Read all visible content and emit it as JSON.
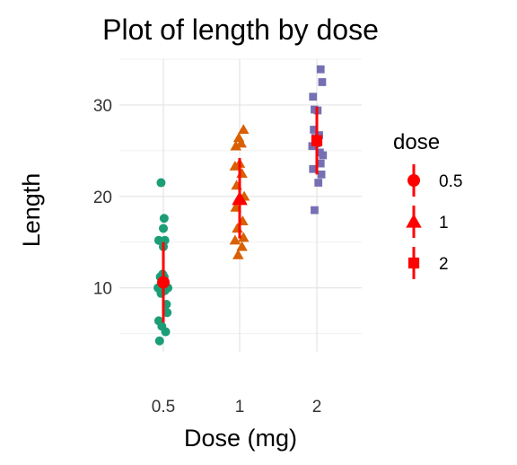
{
  "chart_data": {
    "type": "scatter",
    "title": "Plot of length  by dose",
    "xlabel": "Dose (mg)",
    "ylabel": "Length",
    "categories": [
      "0.5",
      "1",
      "2"
    ],
    "yticks": [
      10,
      20,
      30
    ],
    "ylim": [
      3,
      35
    ],
    "grid": true,
    "legend": {
      "title": "dose",
      "position": "right",
      "entries": [
        "0.5",
        "1",
        "2"
      ]
    },
    "series": [
      {
        "category": "0.5",
        "shape": "circle",
        "color": "#1b9e77",
        "points": [
          [
            -0.05,
            4.2
          ],
          [
            0.03,
            5.2
          ],
          [
            -0.02,
            5.8
          ],
          [
            -0.06,
            6.4
          ],
          [
            0.05,
            7.3
          ],
          [
            0.04,
            8.2
          ],
          [
            -0.03,
            9.4
          ],
          [
            0.02,
            9.7
          ],
          [
            -0.07,
            10.0
          ],
          [
            0.06,
            10.0
          ],
          [
            -0.04,
            11.2
          ],
          [
            0.01,
            11.2
          ],
          [
            -0.01,
            11.5
          ],
          [
            0.0,
            14.5
          ],
          [
            -0.06,
            15.2
          ],
          [
            0.02,
            15.2
          ],
          [
            0.0,
            16.5
          ],
          [
            0.01,
            17.6
          ],
          [
            -0.03,
            21.5
          ]
        ],
        "mean": 10.6,
        "sd": [
          6.2,
          15.0
        ]
      },
      {
        "category": "1",
        "shape": "triangle",
        "color": "#d95f02",
        "points": [
          [
            -0.02,
            13.6
          ],
          [
            0.03,
            14.5
          ],
          [
            -0.06,
            15.2
          ],
          [
            0.05,
            15.5
          ],
          [
            -0.03,
            16.5
          ],
          [
            0.04,
            17.3
          ],
          [
            -0.05,
            18.8
          ],
          [
            0.02,
            19.7
          ],
          [
            0.06,
            20.0
          ],
          [
            -0.04,
            21.2
          ],
          [
            -0.06,
            23.3
          ],
          [
            0.0,
            23.6
          ],
          [
            0.03,
            22.5
          ],
          [
            -0.05,
            25.5
          ],
          [
            0.02,
            25.8
          ],
          [
            -0.01,
            26.4
          ],
          [
            0.05,
            27.3
          ]
        ],
        "mean": 19.7,
        "sd": [
          15.4,
          24.2
        ]
      },
      {
        "category": "2",
        "shape": "square",
        "color": "#7570b3",
        "points": [
          [
            -0.03,
            18.5
          ],
          [
            0.02,
            21.5
          ],
          [
            -0.05,
            23.0
          ],
          [
            0.06,
            22.4
          ],
          [
            0.05,
            23.6
          ],
          [
            0.08,
            24.5
          ],
          [
            0.04,
            24.8
          ],
          [
            -0.06,
            25.5
          ],
          [
            0.0,
            25.8
          ],
          [
            -0.02,
            26.4
          ],
          [
            0.03,
            26.7
          ],
          [
            -0.04,
            27.3
          ],
          [
            0.01,
            29.4
          ],
          [
            -0.03,
            29.5
          ],
          [
            -0.05,
            30.9
          ],
          [
            0.07,
            32.5
          ],
          [
            0.05,
            33.9
          ]
        ],
        "mean": 26.1,
        "sd": [
          22.4,
          29.8
        ]
      }
    ],
    "summary_color": "#ff0000"
  }
}
